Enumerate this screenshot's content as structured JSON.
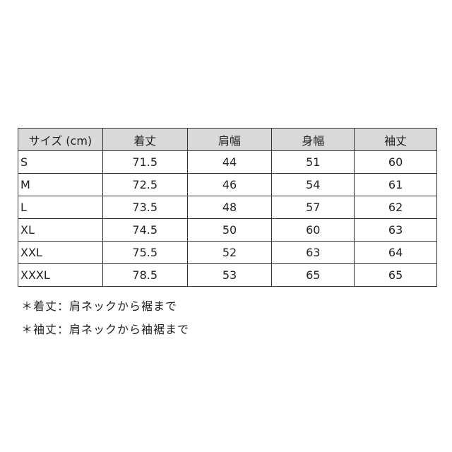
{
  "table": {
    "headers": [
      "サイズ (cm)",
      "着丈",
      "肩幅",
      "身幅",
      "袖丈"
    ],
    "rows": [
      [
        "S",
        "71.5",
        "44",
        "51",
        "60"
      ],
      [
        "M",
        "72.5",
        "46",
        "54",
        "61"
      ],
      [
        "L",
        "73.5",
        "48",
        "57",
        "62"
      ],
      [
        "XL",
        "74.5",
        "50",
        "60",
        "63"
      ],
      [
        "XXL",
        "75.5",
        "52",
        "63",
        "64"
      ],
      [
        "XXXL",
        "78.5",
        "53",
        "65",
        "65"
      ]
    ],
    "header_bg": "#d9d9d9"
  },
  "notes": [
    "＊着丈：肩ネックから裾まで",
    "＊袖丈：肩ネックから袖裾まで"
  ]
}
